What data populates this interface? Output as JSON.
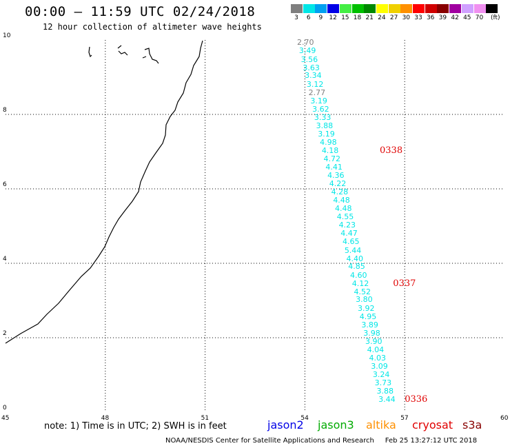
{
  "title": "00:00 – 11:59 UTC 02/24/2018",
  "subtitle": "12 hour collection of altimeter wave heights",
  "legend": {
    "unit": "(ft)",
    "items": [
      {
        "label": "3",
        "color": "#7f7f7f"
      },
      {
        "label": "6",
        "color": "#00e6e6"
      },
      {
        "label": "9",
        "color": "#00a0f0"
      },
      {
        "label": "12",
        "color": "#0000e6"
      },
      {
        "label": "15",
        "color": "#44ee44"
      },
      {
        "label": "18",
        "color": "#00c000"
      },
      {
        "label": "21",
        "color": "#008800"
      },
      {
        "label": "24",
        "color": "#ffff00"
      },
      {
        "label": "27",
        "color": "#f0d000"
      },
      {
        "label": "30",
        "color": "#ff9000"
      },
      {
        "label": "33",
        "color": "#ff0000"
      },
      {
        "label": "36",
        "color": "#d00000"
      },
      {
        "label": "39",
        "color": "#880000"
      },
      {
        "label": "42",
        "color": "#a000a0"
      },
      {
        "label": "45",
        "color": "#d0a0ff"
      },
      {
        "label": "70",
        "color": "#f090f0"
      },
      {
        "label": "",
        "color": "#000000"
      }
    ]
  },
  "axes": {
    "x_ticks": [
      "45",
      "48",
      "51",
      "54",
      "57",
      "60"
    ],
    "y_ticks": [
      "0",
      "2",
      "4",
      "6",
      "8",
      "10"
    ]
  },
  "observations": [
    {
      "v": "2.70",
      "c": "#7f7f7f",
      "lat": 9.93
    },
    {
      "v": "3.49",
      "c": "#00e6e6",
      "lat": 9.7
    },
    {
      "v": "3.56",
      "c": "#00e6e6",
      "lat": 9.47
    },
    {
      "v": "3.63",
      "c": "#00e6e6",
      "lat": 9.25
    },
    {
      "v": "3.34",
      "c": "#00e6e6",
      "lat": 9.03
    },
    {
      "v": "3.12",
      "c": "#00e6e6",
      "lat": 8.8
    },
    {
      "v": "2.77",
      "c": "#7f7f7f",
      "lat": 8.58
    },
    {
      "v": "3.19",
      "c": "#00e6e6",
      "lat": 8.36
    },
    {
      "v": "3.62",
      "c": "#00e6e6",
      "lat": 8.13
    },
    {
      "v": "3.33",
      "c": "#00e6e6",
      "lat": 7.91
    },
    {
      "v": "3.88",
      "c": "#00e6e6",
      "lat": 7.69
    },
    {
      "v": "3.19",
      "c": "#00e6e6",
      "lat": 7.47
    },
    {
      "v": "4.98",
      "c": "#00e6e6",
      "lat": 7.24
    },
    {
      "v": "4.18",
      "c": "#00e6e6",
      "lat": 7.02
    },
    {
      "v": "4.72",
      "c": "#00e6e6",
      "lat": 6.8
    },
    {
      "v": "4.41",
      "c": "#00e6e6",
      "lat": 6.57
    },
    {
      "v": "4.36",
      "c": "#00e6e6",
      "lat": 6.35
    },
    {
      "v": "4.22",
      "c": "#00e6e6",
      "lat": 6.13
    },
    {
      "v": "4.28",
      "c": "#00e6e6",
      "lat": 5.9
    },
    {
      "v": "4.48",
      "c": "#00e6e6",
      "lat": 5.68
    },
    {
      "v": "4.48",
      "c": "#00e6e6",
      "lat": 5.46
    },
    {
      "v": "4.55",
      "c": "#00e6e6",
      "lat": 5.24
    },
    {
      "v": "4.23",
      "c": "#00e6e6",
      "lat": 5.01
    },
    {
      "v": "4.47",
      "c": "#00e6e6",
      "lat": 4.79
    },
    {
      "v": "4.65",
      "c": "#00e6e6",
      "lat": 4.57
    },
    {
      "v": "5.44",
      "c": "#00e6e6",
      "lat": 4.34
    },
    {
      "v": "4.40",
      "c": "#00e6e6",
      "lat": 4.12
    },
    {
      "v": "4.85",
      "c": "#00e6e6",
      "lat": 3.9
    },
    {
      "v": "4.60",
      "c": "#00e6e6",
      "lat": 3.67
    },
    {
      "v": "4.12",
      "c": "#00e6e6",
      "lat": 3.45
    },
    {
      "v": "4.52",
      "c": "#00e6e6",
      "lat": 3.23
    },
    {
      "v": "3.80",
      "c": "#00e6e6",
      "lat": 3.01
    },
    {
      "v": "3.92",
      "c": "#00e6e6",
      "lat": 2.78
    },
    {
      "v": "4.95",
      "c": "#00e6e6",
      "lat": 2.56
    },
    {
      "v": "3.89",
      "c": "#00e6e6",
      "lat": 2.34
    },
    {
      "v": "3.98",
      "c": "#00e6e6",
      "lat": 2.11
    },
    {
      "v": "3.90",
      "c": "#00e6e6",
      "lat": 1.89
    },
    {
      "v": "4.04",
      "c": "#00e6e6",
      "lat": 1.67
    },
    {
      "v": "4.03",
      "c": "#00e6e6",
      "lat": 1.44
    },
    {
      "v": "3.09",
      "c": "#00e6e6",
      "lat": 1.22
    },
    {
      "v": "3.24",
      "c": "#00e6e6",
      "lat": 1.0
    },
    {
      "v": "3.73",
      "c": "#00e6e6",
      "lat": 0.78
    },
    {
      "v": "3.88",
      "c": "#00e6e6",
      "lat": 0.55
    },
    {
      "v": "3.44",
      "c": "#00e6e6",
      "lat": 0.33
    }
  ],
  "pass_times": [
    {
      "label": "0338",
      "lat": 7.02,
      "lon": 56.25
    },
    {
      "label": "0337",
      "lat": 3.45,
      "lon": 56.65
    },
    {
      "label": "0336",
      "lat": 0.33,
      "lon": 57.0
    }
  ],
  "note": "note:  1) Time is in UTC;  2) SWH is in feet",
  "satellites": [
    {
      "name": "jason2",
      "color": "#0000e6"
    },
    {
      "name": "jason3",
      "color": "#00aa00"
    },
    {
      "name": "altika",
      "color": "#ff9000"
    },
    {
      "name": "cryosat",
      "color": "#e00000"
    },
    {
      "name": "s3a",
      "color": "#880000"
    }
  ],
  "credit": "NOAA/NESDIS Center for Satellite Applications and Research     Feb 25 13:27:12 UTC 2018"
}
